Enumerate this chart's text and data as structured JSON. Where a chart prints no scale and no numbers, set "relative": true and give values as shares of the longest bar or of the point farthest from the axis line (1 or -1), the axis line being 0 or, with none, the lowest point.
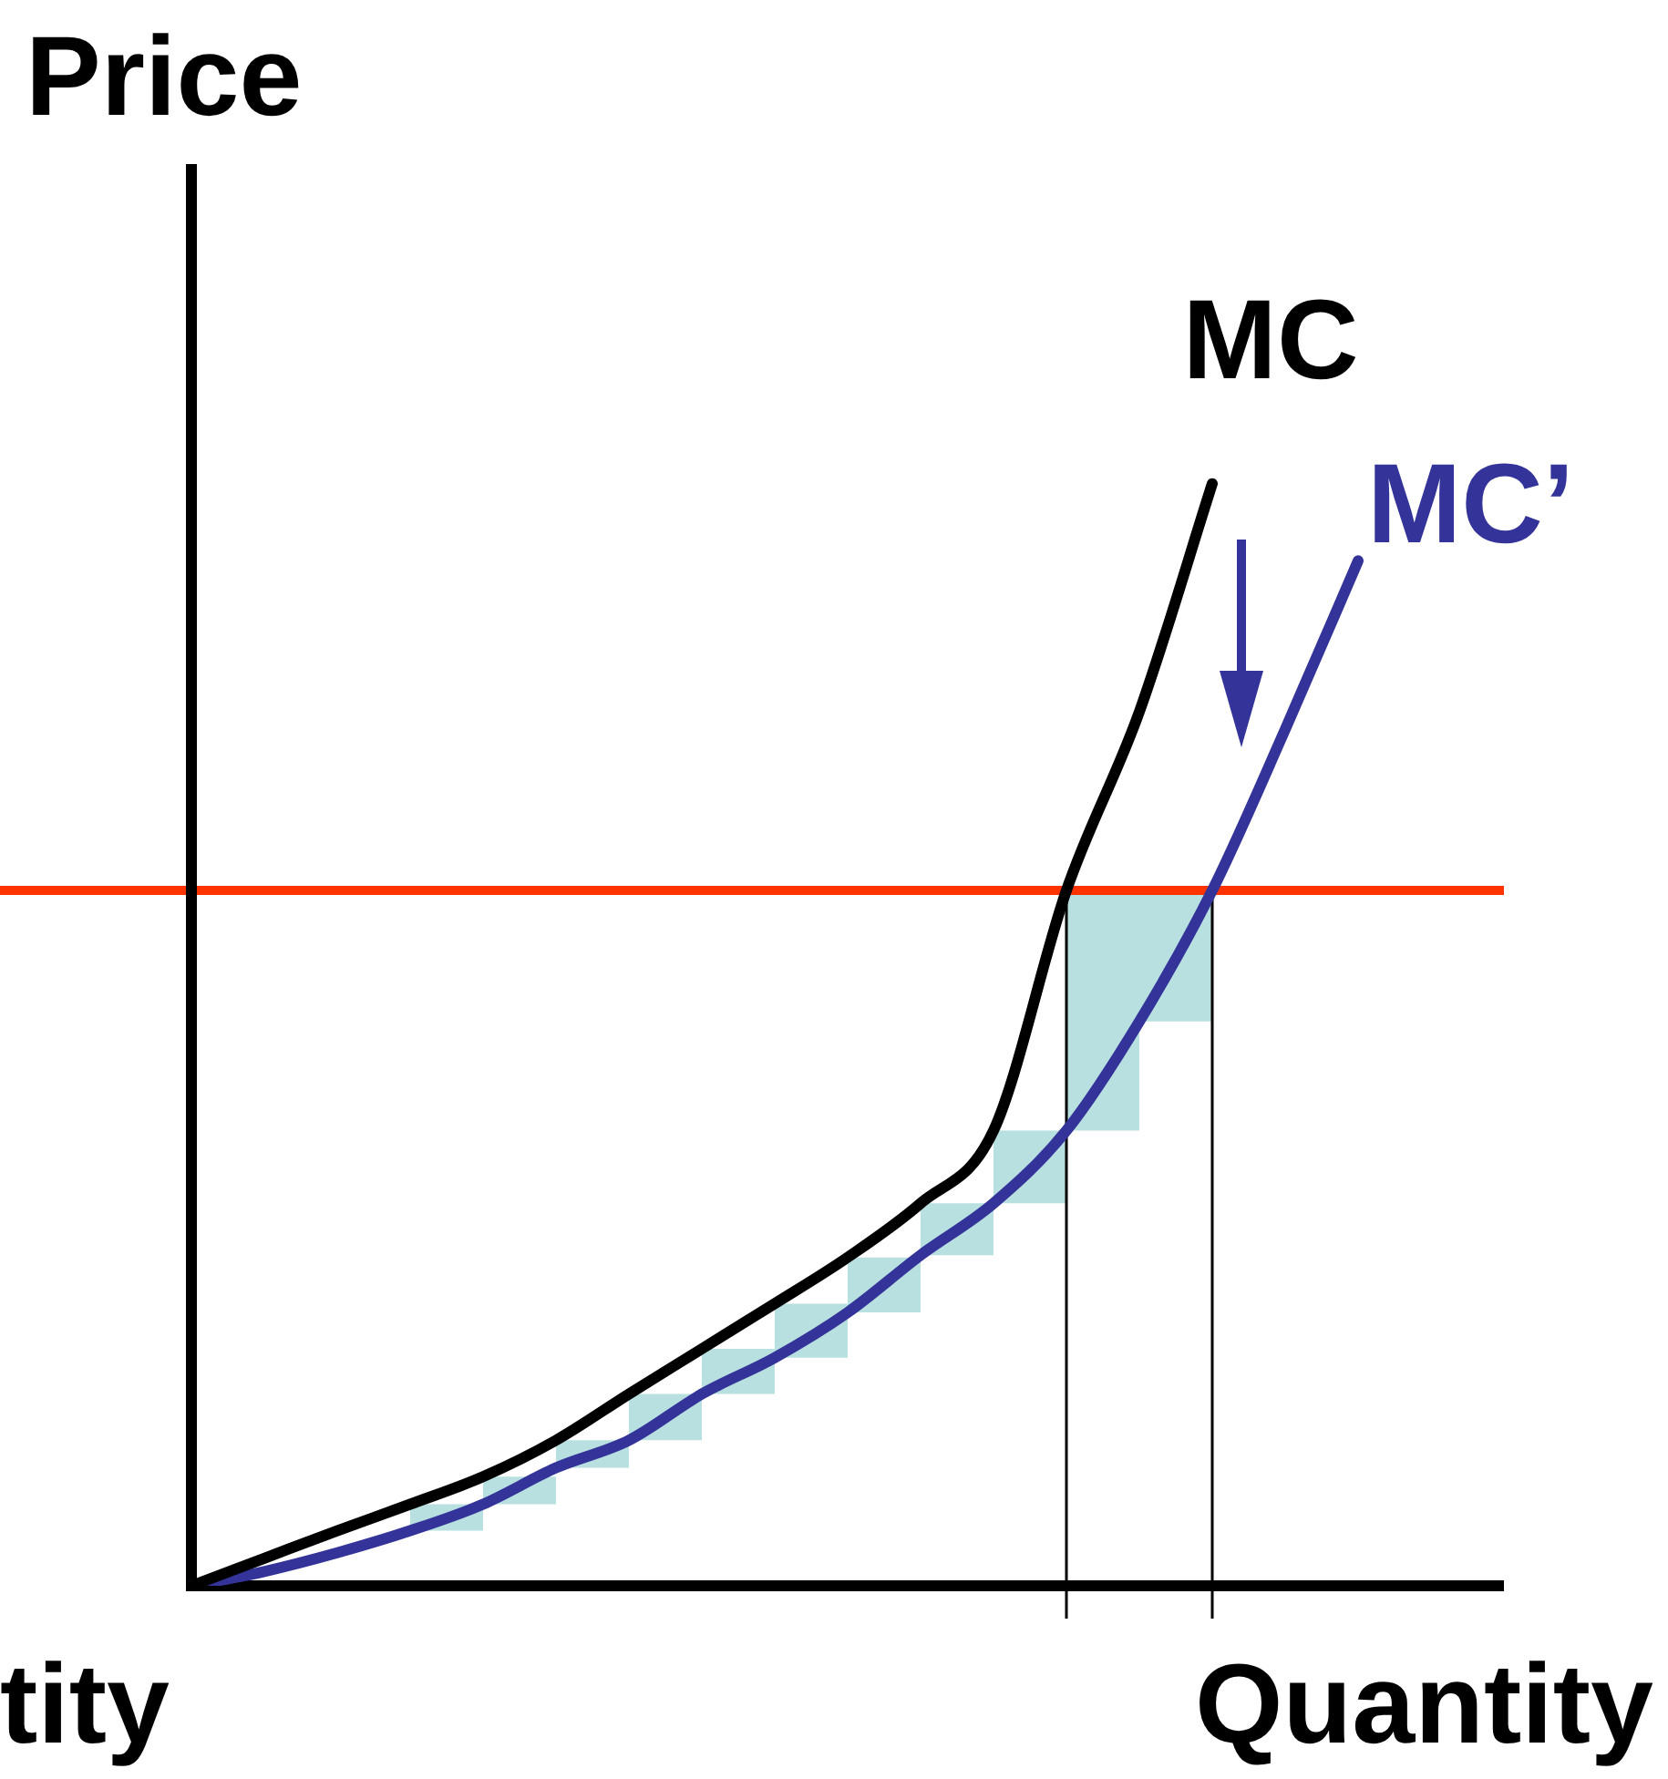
{
  "chart_data": {
    "type": "line",
    "relative": true,
    "xlabel": "Quantity",
    "ylabel": "Price",
    "categories": [
      null,
      null,
      null,
      null,
      null,
      null,
      null,
      null,
      null,
      null,
      null,
      null,
      null,
      null,
      null,
      null,
      null,
      null,
      null
    ],
    "series": [
      {
        "name": "MC",
        "color": "#000000",
        "values": [
          0,
          0.025,
          0.05,
          0.074,
          0.099,
          0.132,
          0.174,
          0.215,
          0.256,
          0.298,
          0.347,
          0.413,
          0.631,
          0.793,
          1,
          null,
          null,
          null,
          null
        ]
      },
      {
        "name": "MC’",
        "color": "#333399",
        "values": [
          0,
          0.013,
          0.03,
          0.05,
          0.074,
          0.107,
          0.132,
          0.174,
          0.207,
          0.248,
          0.3,
          0.347,
          0.413,
          0.512,
          0.631,
          0.777,
          0.93,
          null,
          null
        ],
        "lower": [
          null,
          null,
          null,
          0.05,
          0.074,
          0.107,
          0.132,
          0.174,
          0.207,
          0.248,
          0.3,
          0.347,
          0.413,
          0.512,
          0.631,
          null,
          null,
          null,
          null
        ],
        "upper": [
          null,
          null,
          null,
          0.074,
          0.099,
          0.132,
          0.174,
          0.215,
          0.256,
          0.298,
          0.347,
          0.413,
          0.631,
          0.631,
          0.631,
          null,
          null,
          null,
          null
        ]
      }
    ],
    "ref_lines": [
      {
        "axis": "y",
        "value": 0.631,
        "color": "#ff3300"
      }
    ],
    "annotations": [
      "tity"
    ],
    "legend": false,
    "marker": "none",
    "line_style": "solid"
  }
}
